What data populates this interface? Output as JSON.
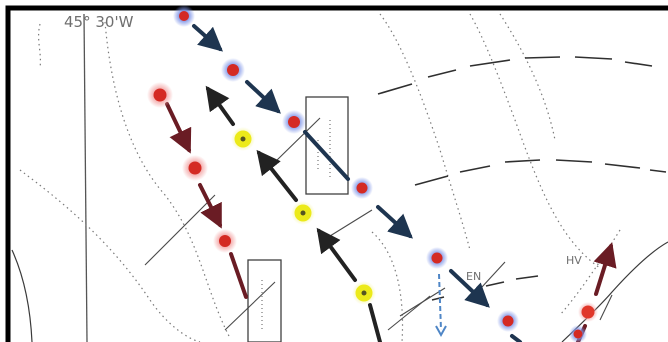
{
  "map": {
    "labels": {
      "longitude": "45° 30'W",
      "station_a": "EN",
      "station_b": "HV"
    },
    "colors": {
      "frame": "#000000",
      "contour": "#7a7a7a",
      "axis": "#555555",
      "track_navy": "#1e3550",
      "track_black": "#222222",
      "track_maroon": "#6a1c24",
      "station_red": "#d42a23",
      "station_yellow": "#ecea1a",
      "station_halo_blue": "#7f95e8",
      "station_halo_red": "#f2a0a0",
      "sand_wave_box": "#404040"
    },
    "legend_symbols": [
      "red-station-dot-icon",
      "yellow-station-dot-icon",
      "direction-arrow-icon"
    ]
  }
}
